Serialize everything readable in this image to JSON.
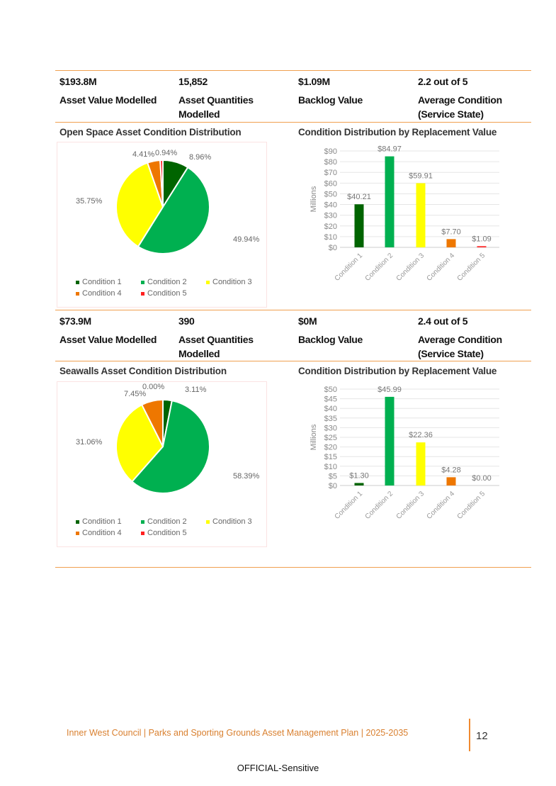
{
  "colors": {
    "c1": "#006400",
    "c2": "#00b050",
    "c3": "#ffff00",
    "c4": "#ee7700",
    "c5": "#ff2020",
    "accent": "#f0a050"
  },
  "sections": [
    {
      "stats": [
        {
          "value": "$193.8M",
          "label": "Asset Value Modelled"
        },
        {
          "value": "15,852",
          "label": "Asset Quantities Modelled"
        },
        {
          "value": "$1.09M",
          "label": "Backlog Value"
        },
        {
          "value": "2.2 out of 5",
          "label": "Average Condition (Service State)"
        }
      ],
      "pie_title": "Open Space Asset Condition Distribution",
      "bar_title": "Condition Distribution by Replacement Value",
      "pie": {
        "type": "pie",
        "categories": [
          "Condition 1",
          "Condition 2",
          "Condition 3",
          "Condition 4",
          "Condition 5"
        ],
        "values": [
          8.96,
          49.94,
          35.75,
          4.41,
          0.94
        ],
        "labels": [
          "8.96%",
          "49.94%",
          "35.75%",
          "4.41%",
          "0.94%"
        ]
      },
      "bar": {
        "type": "bar",
        "categories": [
          "Condition 1",
          "Condition 2",
          "Condition 3",
          "Condition 4",
          "Condition 5"
        ],
        "values": [
          40.21,
          84.97,
          59.91,
          7.7,
          1.09
        ],
        "labels": [
          "$40.21",
          "$84.97",
          "$59.91",
          "$7.70",
          "$1.09"
        ],
        "ylabel": "Millions",
        "ylim": [
          0,
          90
        ],
        "yticks": [
          "$0",
          "$10",
          "$20",
          "$30",
          "$40",
          "$50",
          "$60",
          "$70",
          "$80",
          "$90"
        ],
        "ystep": 10
      }
    },
    {
      "stats": [
        {
          "value": "$73.9M",
          "label": "Asset Value Modelled"
        },
        {
          "value": "390",
          "label": "Asset Quantities Modelled"
        },
        {
          "value": "$0M",
          "label": "Backlog Value"
        },
        {
          "value": "2.4 out of 5",
          "label": "Average Condition (Service State)"
        }
      ],
      "pie_title": "Seawalls Asset Condition Distribution",
      "bar_title": "Condition Distribution by Replacement Value",
      "pie": {
        "type": "pie",
        "categories": [
          "Condition 1",
          "Condition 2",
          "Condition 3",
          "Condition 4",
          "Condition 5"
        ],
        "values": [
          3.11,
          58.39,
          31.06,
          7.45,
          0.0
        ],
        "labels": [
          "3.11%",
          "58.39%",
          "31.06%",
          "7.45%",
          "0.00%"
        ]
      },
      "bar": {
        "type": "bar",
        "categories": [
          "Condition 1",
          "Condition 2",
          "Condition 3",
          "Condition 4",
          "Condition 5"
        ],
        "values": [
          1.3,
          45.99,
          22.36,
          4.28,
          0.0
        ],
        "labels": [
          "$1.30",
          "$45.99",
          "$22.36",
          "$4.28",
          "$0.00"
        ],
        "ylabel": "Millions",
        "ylim": [
          0,
          50
        ],
        "yticks": [
          "$0",
          "$5",
          "$10",
          "$15",
          "$20",
          "$25",
          "$30",
          "$35",
          "$40",
          "$45",
          "$50"
        ],
        "ystep": 5
      }
    }
  ],
  "chart_data": [
    {
      "type": "pie",
      "title": "Open Space Asset Condition Distribution",
      "categories": [
        "Condition 1",
        "Condition 2",
        "Condition 3",
        "Condition 4",
        "Condition 5"
      ],
      "values": [
        8.96,
        49.94,
        35.75,
        4.41,
        0.94
      ],
      "legend": "bottom"
    },
    {
      "type": "bar",
      "title": "Condition Distribution by Replacement Value",
      "categories": [
        "Condition 1",
        "Condition 2",
        "Condition 3",
        "Condition 4",
        "Condition 5"
      ],
      "values": [
        40.21,
        84.97,
        59.91,
        7.7,
        1.09
      ],
      "ylabel": "Millions",
      "ylim": [
        0,
        90
      ]
    },
    {
      "type": "pie",
      "title": "Seawalls Asset Condition Distribution",
      "categories": [
        "Condition 1",
        "Condition 2",
        "Condition 3",
        "Condition 4",
        "Condition 5"
      ],
      "values": [
        3.11,
        58.39,
        31.06,
        7.45,
        0.0
      ],
      "legend": "bottom"
    },
    {
      "type": "bar",
      "title": "Condition Distribution by Replacement Value",
      "categories": [
        "Condition 1",
        "Condition 2",
        "Condition 3",
        "Condition 4",
        "Condition 5"
      ],
      "values": [
        1.3,
        45.99,
        22.36,
        4.28,
        0.0
      ],
      "ylabel": "Millions",
      "ylim": [
        0,
        50
      ]
    }
  ],
  "footer": {
    "text": "Inner West Council | Parks and Sporting Grounds Asset Management Plan | 2025-2035",
    "page": "12",
    "classification": "OFFICIAL-Sensitive"
  }
}
